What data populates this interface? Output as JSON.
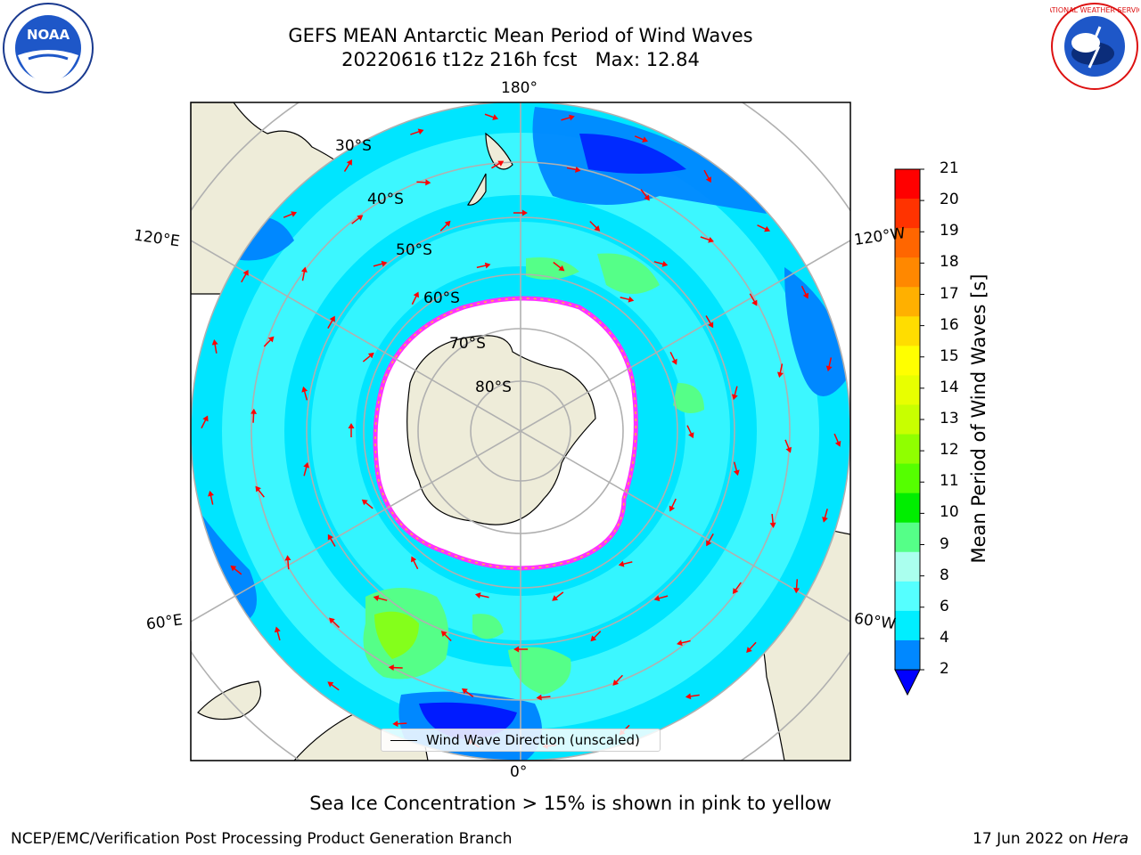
{
  "header": {
    "title_line1": "GEFS MEAN Antarctic Mean Period of Wind Waves",
    "title_line2": "20220616 t12z 216h fcst   Max: 12.84"
  },
  "logos": {
    "left": "noaa-logo",
    "left_text": "NOAA",
    "right": "nws-logo",
    "right_text": "NATIONAL WEATHER SERVICE"
  },
  "map": {
    "projection": "south-polar-stereographic",
    "longitude_labels": {
      "top": "180°",
      "bottom": "0°",
      "upper_left": "120°E",
      "lower_left": "60°E",
      "upper_right": "120°W",
      "lower_right": "60°W"
    },
    "latitude_labels": [
      "30°S",
      "40°S",
      "50°S",
      "60°S",
      "70°S",
      "80°S"
    ],
    "legend_label": "Wind Wave Direction (unscaled)",
    "colors": {
      "land": "#eeecd9",
      "ocean_base": "#00e5ff",
      "sea_ice_edge": "#ff33ff",
      "arrow": "#ff0000"
    }
  },
  "colorbar": {
    "label": "Mean Period of Wind Waves [s]",
    "ticks": [
      "21",
      "20",
      "19",
      "18",
      "17",
      "16",
      "15",
      "14",
      "13",
      "12",
      "11",
      "10",
      "9",
      "8",
      "6",
      "4",
      "2"
    ],
    "colors": [
      "#ff0000",
      "#ff3300",
      "#ff6600",
      "#ff8800",
      "#ffb000",
      "#ffdd00",
      "#ffff00",
      "#e8ff00",
      "#c8ff00",
      "#90ff00",
      "#55ff00",
      "#00ee00",
      "#55ff88",
      "#aaffee",
      "#55ffff",
      "#00eeff",
      "#0088ff",
      "#0000ff"
    ]
  },
  "notes": {
    "sea_ice": "Sea Ice Concentration > 15% is shown in pink to yellow"
  },
  "footer": {
    "left": "NCEP/EMC/Verification Post Processing Product Generation Branch",
    "right_date": "17 Jun 2022 on ",
    "right_system": "Hera"
  }
}
